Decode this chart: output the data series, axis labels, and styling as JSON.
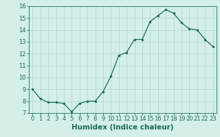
{
  "x": [
    0,
    1,
    2,
    3,
    4,
    5,
    6,
    7,
    8,
    9,
    10,
    11,
    12,
    13,
    14,
    15,
    16,
    17,
    18,
    19,
    20,
    21,
    22,
    23
  ],
  "y": [
    9.0,
    8.2,
    7.9,
    7.9,
    7.8,
    7.1,
    7.8,
    8.0,
    8.0,
    8.8,
    10.1,
    11.85,
    12.1,
    13.2,
    13.2,
    14.7,
    15.2,
    15.7,
    15.4,
    14.6,
    14.1,
    14.0,
    13.2,
    12.6
  ],
  "line_color": "#1a6b5a",
  "marker": "o",
  "marker_size": 2.0,
  "xlabel": "Humidex (Indice chaleur)",
  "xlim": [
    -0.5,
    23.5
  ],
  "ylim": [
    7,
    16
  ],
  "yticks": [
    7,
    8,
    9,
    10,
    11,
    12,
    13,
    14,
    15,
    16
  ],
  "xticks": [
    0,
    1,
    2,
    3,
    4,
    5,
    6,
    7,
    8,
    9,
    10,
    11,
    12,
    13,
    14,
    15,
    16,
    17,
    18,
    19,
    20,
    21,
    22,
    23
  ],
  "background_color": "#d4eeea",
  "grid_color": "#aed4ce",
  "tick_fontsize": 6.0,
  "xlabel_fontsize": 7.5
}
